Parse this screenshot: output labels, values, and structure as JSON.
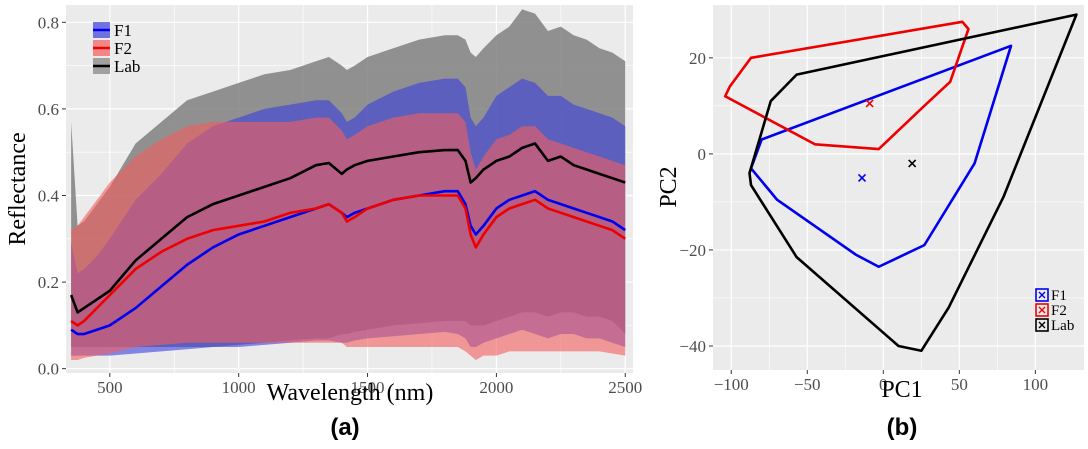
{
  "colors": {
    "F1": "#0000ee",
    "F2": "#ee0000",
    "Lab": "#000000",
    "panel_bg": "#ebebeb",
    "grid": "#ffffff"
  },
  "chart_data": [
    {
      "type": "area",
      "panel_label": "(a)",
      "xlabel": "Wavelength (nm)",
      "ylabel": "Reflectance",
      "xlim": [
        330,
        2530
      ],
      "ylim": [
        -0.01,
        0.84
      ],
      "xticks": [
        500,
        1000,
        1500,
        2000,
        2500
      ],
      "yticks": [
        0.0,
        0.2,
        0.4,
        0.6,
        0.8
      ],
      "xtick_labels": [
        "500",
        "1000",
        "1500",
        "2000",
        "2500"
      ],
      "ytick_labels": [
        "0.0",
        "0.2",
        "0.4",
        "0.6",
        "0.8"
      ],
      "grid": true,
      "legend": {
        "position": "top-left",
        "entries": [
          "F1",
          "F2",
          "Lab"
        ]
      },
      "x": [
        350,
        375,
        400,
        450,
        500,
        600,
        700,
        800,
        900,
        1000,
        1100,
        1200,
        1300,
        1350,
        1400,
        1420,
        1450,
        1500,
        1600,
        1700,
        1800,
        1850,
        1880,
        1900,
        1920,
        1950,
        2000,
        2050,
        2100,
        2150,
        2200,
        2250,
        2300,
        2350,
        2400,
        2450,
        2500
      ],
      "series": [
        {
          "name": "Lab",
          "color": "#000000",
          "fill_color": "#808080",
          "fill_opacity": 0.85,
          "mean": [
            0.17,
            0.13,
            0.14,
            0.16,
            0.18,
            0.25,
            0.3,
            0.35,
            0.38,
            0.4,
            0.42,
            0.44,
            0.47,
            0.475,
            0.45,
            0.46,
            0.47,
            0.48,
            0.49,
            0.5,
            0.505,
            0.505,
            0.48,
            0.43,
            0.44,
            0.46,
            0.48,
            0.49,
            0.51,
            0.52,
            0.48,
            0.49,
            0.47,
            0.46,
            0.45,
            0.44,
            0.43
          ],
          "upper": [
            0.57,
            0.33,
            0.34,
            0.38,
            0.42,
            0.52,
            0.57,
            0.62,
            0.64,
            0.66,
            0.68,
            0.69,
            0.71,
            0.72,
            0.7,
            0.69,
            0.7,
            0.72,
            0.74,
            0.76,
            0.77,
            0.77,
            0.76,
            0.73,
            0.72,
            0.74,
            0.77,
            0.79,
            0.83,
            0.82,
            0.78,
            0.79,
            0.77,
            0.76,
            0.74,
            0.73,
            0.71
          ],
          "lower": [
            0.05,
            0.05,
            0.05,
            0.05,
            0.05,
            0.05,
            0.05,
            0.05,
            0.05,
            0.055,
            0.06,
            0.065,
            0.07,
            0.07,
            0.08,
            0.08,
            0.085,
            0.09,
            0.1,
            0.105,
            0.11,
            0.11,
            0.11,
            0.1,
            0.1,
            0.1,
            0.11,
            0.12,
            0.13,
            0.13,
            0.12,
            0.13,
            0.13,
            0.12,
            0.12,
            0.11,
            0.08
          ]
        },
        {
          "name": "F1",
          "color": "#0000ee",
          "fill_color": "#3b3fdc",
          "fill_opacity": 0.6,
          "mean": [
            0.09,
            0.08,
            0.08,
            0.09,
            0.1,
            0.14,
            0.19,
            0.24,
            0.28,
            0.31,
            0.33,
            0.35,
            0.37,
            0.38,
            0.36,
            0.35,
            0.36,
            0.37,
            0.39,
            0.4,
            0.41,
            0.41,
            0.38,
            0.33,
            0.31,
            0.33,
            0.37,
            0.39,
            0.4,
            0.41,
            0.39,
            0.38,
            0.37,
            0.36,
            0.35,
            0.34,
            0.32
          ],
          "upper": [
            0.29,
            0.22,
            0.23,
            0.26,
            0.3,
            0.39,
            0.45,
            0.52,
            0.56,
            0.58,
            0.6,
            0.61,
            0.62,
            0.62,
            0.59,
            0.57,
            0.58,
            0.61,
            0.64,
            0.66,
            0.67,
            0.67,
            0.65,
            0.58,
            0.56,
            0.58,
            0.63,
            0.65,
            0.67,
            0.66,
            0.63,
            0.63,
            0.61,
            0.6,
            0.59,
            0.58,
            0.56
          ],
          "lower": [
            0.03,
            0.03,
            0.03,
            0.03,
            0.03,
            0.035,
            0.04,
            0.045,
            0.05,
            0.05,
            0.055,
            0.06,
            0.065,
            0.065,
            0.06,
            0.06,
            0.065,
            0.07,
            0.075,
            0.08,
            0.085,
            0.08,
            0.07,
            0.05,
            0.05,
            0.06,
            0.07,
            0.08,
            0.09,
            0.08,
            0.07,
            0.08,
            0.08,
            0.07,
            0.07,
            0.06,
            0.05
          ]
        },
        {
          "name": "F2",
          "color": "#ee0000",
          "fill_color": "#f45d5d",
          "fill_opacity": 0.6,
          "mean": [
            0.11,
            0.1,
            0.11,
            0.14,
            0.17,
            0.23,
            0.27,
            0.3,
            0.32,
            0.33,
            0.34,
            0.36,
            0.37,
            0.38,
            0.36,
            0.34,
            0.35,
            0.37,
            0.39,
            0.4,
            0.4,
            0.4,
            0.37,
            0.31,
            0.28,
            0.31,
            0.35,
            0.37,
            0.38,
            0.39,
            0.37,
            0.36,
            0.35,
            0.34,
            0.33,
            0.32,
            0.3
          ],
          "upper": [
            0.32,
            0.33,
            0.35,
            0.39,
            0.43,
            0.49,
            0.53,
            0.56,
            0.57,
            0.57,
            0.57,
            0.57,
            0.58,
            0.58,
            0.55,
            0.53,
            0.54,
            0.56,
            0.58,
            0.59,
            0.59,
            0.59,
            0.57,
            0.5,
            0.46,
            0.49,
            0.53,
            0.54,
            0.56,
            0.56,
            0.53,
            0.52,
            0.51,
            0.5,
            0.49,
            0.48,
            0.47
          ],
          "lower": [
            0.02,
            0.02,
            0.025,
            0.03,
            0.035,
            0.05,
            0.055,
            0.06,
            0.06,
            0.06,
            0.06,
            0.06,
            0.06,
            0.06,
            0.06,
            0.05,
            0.05,
            0.05,
            0.05,
            0.05,
            0.05,
            0.05,
            0.04,
            0.03,
            0.02,
            0.03,
            0.03,
            0.04,
            0.04,
            0.04,
            0.04,
            0.04,
            0.04,
            0.04,
            0.04,
            0.035,
            0.03
          ]
        }
      ]
    },
    {
      "type": "scatter",
      "panel_label": "(b)",
      "xlabel": "PC1",
      "ylabel": "PC2",
      "xlim": [
        -112,
        132
      ],
      "ylim": [
        -45,
        31
      ],
      "xticks": [
        -100,
        -50,
        0,
        50,
        100
      ],
      "yticks": [
        -40,
        -20,
        0,
        20
      ],
      "xtick_labels": [
        "−100",
        "−50",
        "0",
        "50",
        "100"
      ],
      "ytick_labels": [
        "−40",
        "−20",
        "0",
        "20"
      ],
      "grid": true,
      "legend": {
        "position": "bottom-right",
        "entries": [
          "F1",
          "F2",
          "Lab"
        ]
      },
      "series": [
        {
          "name": "F1",
          "color": "#0000ee",
          "centroid": [
            -14,
            -5
          ],
          "hull": [
            [
              -80,
              3
            ],
            [
              84,
              22.5
            ],
            [
              60,
              -2
            ],
            [
              27,
              -19
            ],
            [
              -3,
              -23.5
            ],
            [
              -18,
              -21
            ],
            [
              -70,
              -9.5
            ],
            [
              -87,
              -3
            ]
          ]
        },
        {
          "name": "F2",
          "color": "#ee0000",
          "centroid": [
            -9,
            10.5
          ],
          "hull": [
            [
              -101,
              14
            ],
            [
              -87,
              20
            ],
            [
              52,
              27.5
            ],
            [
              56,
              26
            ],
            [
              44,
              15
            ],
            [
              27,
              10
            ],
            [
              -3,
              1
            ],
            [
              -45,
              2
            ],
            [
              -104,
              12
            ]
          ]
        },
        {
          "name": "Lab",
          "color": "#000000",
          "centroid": [
            19,
            -2
          ],
          "hull": [
            [
              -88,
              -4
            ],
            [
              -74,
              11
            ],
            [
              -57,
              16.5
            ],
            [
              127,
              29
            ],
            [
              79,
              -9
            ],
            [
              43,
              -32
            ],
            [
              25,
              -41
            ],
            [
              10,
              -40
            ],
            [
              -57,
              -21.5
            ],
            [
              -87,
              -6.5
            ]
          ]
        }
      ]
    }
  ]
}
